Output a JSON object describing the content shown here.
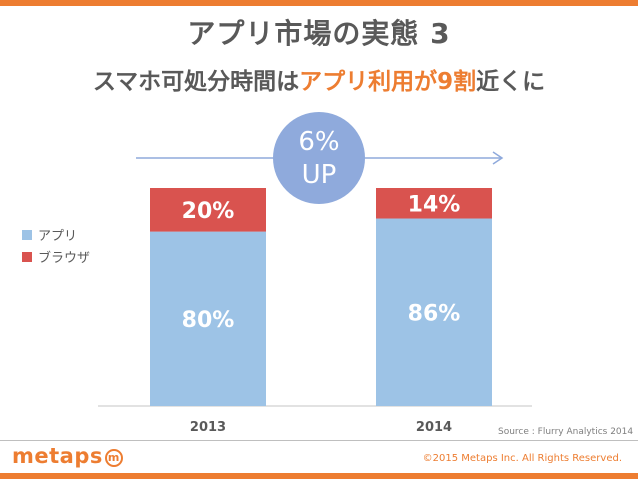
{
  "slide": {
    "title": "アプリ市場の実態 3",
    "subtitle_plain": "スマホ可処分時間は",
    "subtitle_highlight": "アプリ利用が9割",
    "subtitle_tail": "近くに",
    "source": "Source : Flurry Analytics 2014",
    "logo_text": "metaps",
    "logo_mark": "m",
    "copyright": "©2015 Metaps Inc. All Rights Reserved.",
    "accent_color": "#ED7D31"
  },
  "chart_data": {
    "type": "bar",
    "stacked": true,
    "categories": [
      "2013",
      "2014"
    ],
    "series": [
      {
        "name": "アプリ",
        "values": [
          80,
          86
        ],
        "labels": [
          "80%",
          "86%"
        ],
        "color": "#9DC3E6"
      },
      {
        "name": "ブラウザ",
        "values": [
          20,
          14
        ],
        "labels": [
          "20%",
          "14%"
        ],
        "color": "#D9534F"
      }
    ],
    "ylim": [
      0,
      100
    ],
    "legend_position": "left",
    "grid": false,
    "annotation": {
      "line1": "6%",
      "line2": "UP",
      "color": "#8FAADC"
    }
  }
}
